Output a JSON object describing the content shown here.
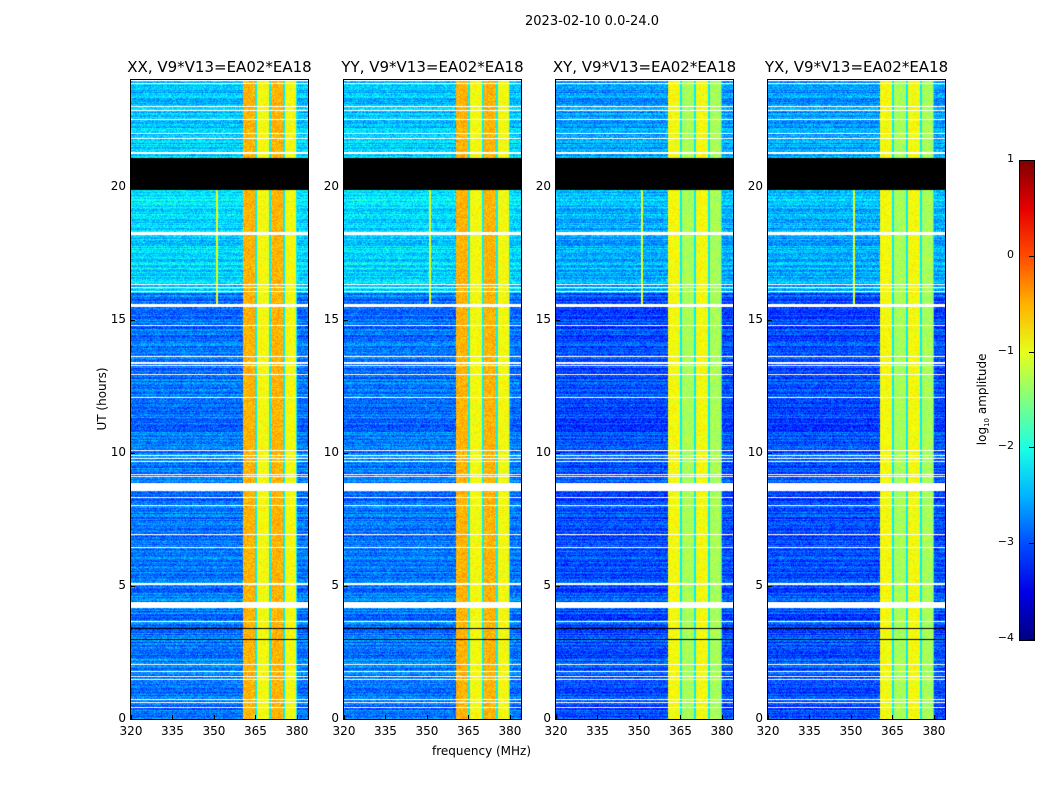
{
  "chart_data": {
    "type": "heatmap",
    "title": "2023-02-10 0.0-24.0",
    "xlabel": "frequency (MHz)",
    "ylabel": "UT (hours)",
    "xlim": [
      320,
      384
    ],
    "ylim": [
      0,
      24
    ],
    "xticks": [
      "320",
      "335",
      "350",
      "365",
      "380"
    ],
    "xtick_values": [
      320,
      335,
      350,
      365,
      380
    ],
    "yticks": [
      "0",
      "5",
      "10",
      "15",
      "20"
    ],
    "ytick_values": [
      0,
      5,
      10,
      15,
      20
    ],
    "panels": [
      {
        "title": "XX, V9*V13=EA02*EA18",
        "band_level": -0.5,
        "rfi_line_mhz": 351,
        "bg_level": -2.8
      },
      {
        "title": "YY, V9*V13=EA02*EA18",
        "band_level": -0.5,
        "rfi_line_mhz": 351,
        "bg_level": -2.8
      },
      {
        "title": "XY, V9*V13=EA02*EA18",
        "band_level": -0.9,
        "rfi_line_mhz": 351,
        "bg_level": -3.0
      },
      {
        "title": "YX, V9*V13=EA02*EA18",
        "band_level": -0.9,
        "rfi_line_mhz": 351,
        "bg_level": -3.0
      }
    ],
    "flagged_ut_ranges": [
      [
        19.9,
        21.1
      ]
    ],
    "bright_band_mhz": [
      360.4,
      380
    ],
    "colorbar": {
      "label": "log10 amplitude",
      "label_main": "log",
      "label_sub": "10",
      "label_rest": " amplitude",
      "range": [
        -4,
        1
      ],
      "ticks": [
        "1",
        "0",
        "−1",
        "−2",
        "−3",
        "−4"
      ],
      "tick_values": [
        1,
        0,
        -1,
        -2,
        -3,
        -4
      ],
      "colormap": "jet"
    }
  }
}
